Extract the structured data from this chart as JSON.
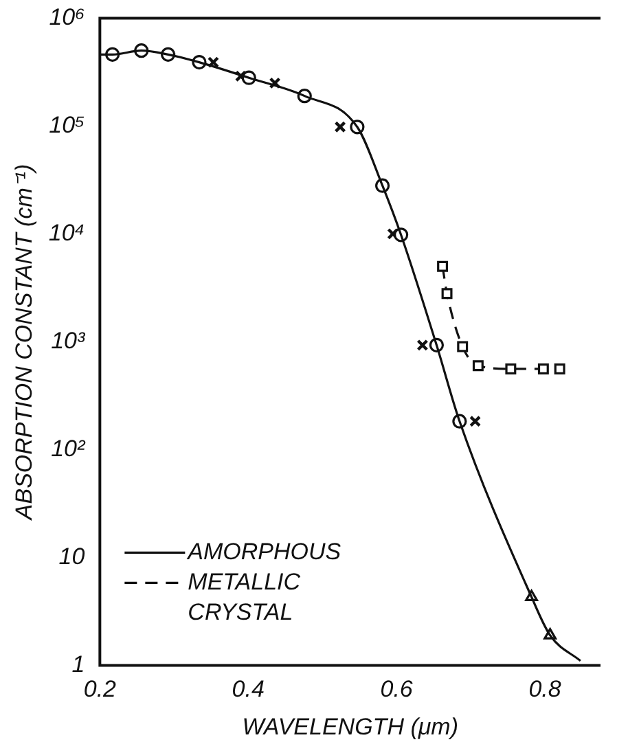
{
  "chart_data": {
    "type": "line",
    "xlabel": "WAVELENGTH (μm)",
    "ylabel": "ABSORPTION CONSTANT (cm⁻¹)",
    "log": "y",
    "xlim": [
      0.2,
      0.875
    ],
    "xticks": [
      0.2,
      0.4,
      0.6,
      0.8
    ],
    "ylim": [
      1,
      1000000
    ],
    "yticks": [
      {
        "value": 1,
        "label": "1"
      },
      {
        "value": 10,
        "label": "10"
      },
      {
        "value": 100,
        "label": "10²"
      },
      {
        "value": 1000,
        "label": "10³"
      },
      {
        "value": 10000,
        "label": "10⁴"
      },
      {
        "value": 100000,
        "label": "10⁵"
      },
      {
        "value": 1000000,
        "label": "10⁶"
      }
    ],
    "grid": false,
    "legend": "bottom left",
    "series": [
      {
        "name": "AMORPHOUS",
        "color": "#111111",
        "line_style": "solid",
        "marker": "none",
        "x": [
          0.2,
          0.217,
          0.256,
          0.292,
          0.334,
          0.401,
          0.476,
          0.547,
          0.581,
          0.606,
          0.654,
          0.685,
          0.782,
          0.807,
          0.848
        ],
        "values": [
          460000,
          460000,
          500000,
          460000,
          390000,
          280000,
          190000,
          98000,
          28000,
          9800,
          930,
          183,
          4.3,
          1.9,
          1.1
        ]
      },
      {
        "name": "METALLIC CRYSTAL",
        "color": "#111111",
        "line_style": "dashed",
        "marker": "square",
        "x": [
          0.662,
          0.668,
          0.689,
          0.71,
          0.754,
          0.798,
          0.82
        ],
        "values": [
          5000,
          2800,
          900,
          600,
          560,
          560,
          560
        ]
      },
      {
        "type": "scatter",
        "color": "#111111",
        "marker": "circle",
        "x": [
          0.217,
          0.256,
          0.292,
          0.334,
          0.401,
          0.476,
          0.547,
          0.581,
          0.606,
          0.654,
          0.685
        ],
        "values": [
          460000,
          500000,
          460000,
          390000,
          280000,
          190000,
          98000,
          28000,
          9800,
          930,
          183
        ]
      },
      {
        "type": "scatter",
        "color": "#111111",
        "marker": "cross",
        "x": [
          0.353,
          0.39,
          0.436,
          0.524,
          0.595,
          0.635,
          0.706
        ],
        "values": [
          390000,
          290000,
          250000,
          98000,
          10000,
          930,
          183
        ]
      },
      {
        "type": "scatter",
        "color": "#111111",
        "marker": "triangle",
        "x": [
          0.782,
          0.807
        ],
        "values": [
          4.3,
          1.9
        ]
      }
    ]
  }
}
